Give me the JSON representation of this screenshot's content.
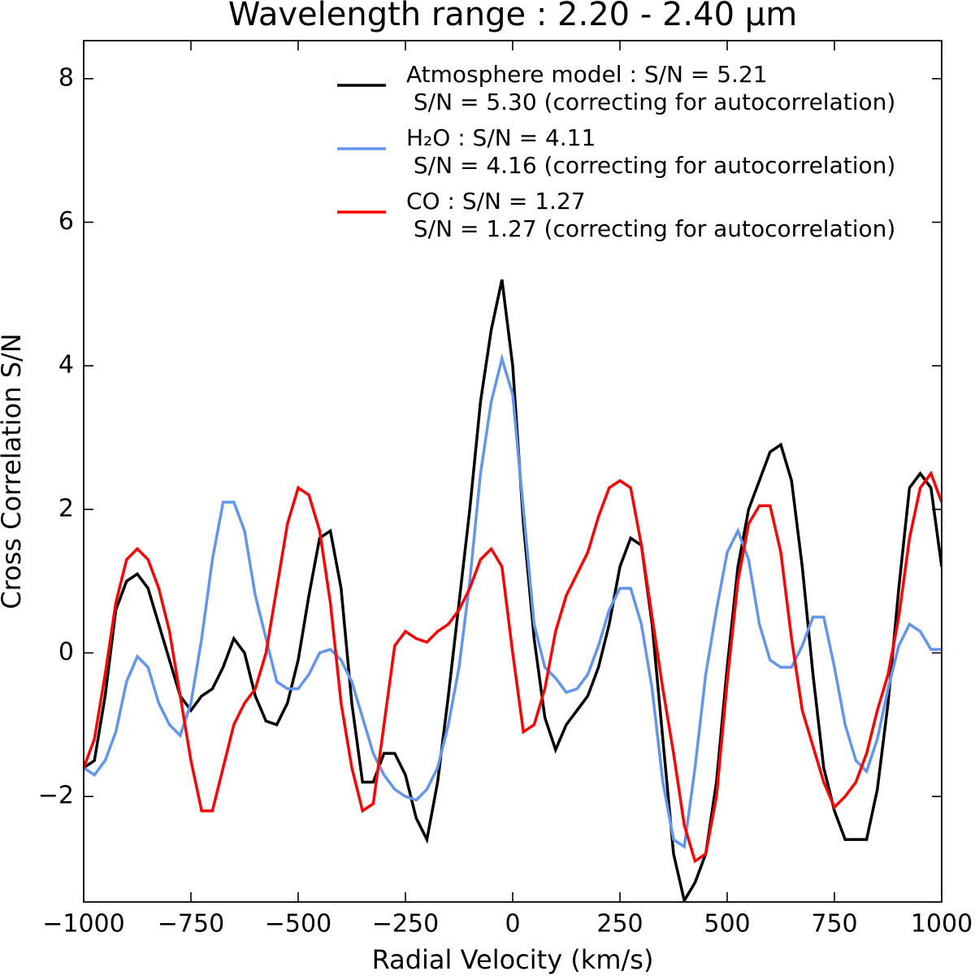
{
  "chart_data": {
    "type": "line",
    "title": "Wavelength range : 2.20 - 2.40 μm",
    "xlabel": "Radial Velocity (km/s)",
    "ylabel": "Cross Correlation S/N",
    "xlim": [
      -1000,
      1000
    ],
    "ylim": [
      -3.47,
      8.53
    ],
    "xticks": [
      {
        "value": -1000,
        "label": "−1000"
      },
      {
        "value": -750,
        "label": "−750"
      },
      {
        "value": -500,
        "label": "−500"
      },
      {
        "value": -250,
        "label": "−250"
      },
      0,
      250,
      500,
      750,
      1000
    ],
    "yticks": [
      {
        "value": -2,
        "label": "−2"
      },
      0,
      2,
      4,
      6,
      8
    ],
    "x": [
      -1000,
      -975,
      -950,
      -925,
      -900,
      -875,
      -850,
      -825,
      -800,
      -775,
      -750,
      -725,
      -700,
      -675,
      -650,
      -625,
      -600,
      -575,
      -550,
      -525,
      -500,
      -475,
      -450,
      -425,
      -400,
      -375,
      -350,
      -325,
      -300,
      -275,
      -250,
      -225,
      -200,
      -175,
      -150,
      -125,
      -100,
      -75,
      -50,
      -25,
      0,
      25,
      50,
      75,
      100,
      125,
      150,
      175,
      200,
      225,
      250,
      275,
      300,
      325,
      350,
      375,
      400,
      425,
      450,
      475,
      500,
      525,
      550,
      575,
      600,
      625,
      650,
      675,
      700,
      725,
      750,
      775,
      800,
      825,
      850,
      875,
      900,
      925,
      950,
      975,
      1000
    ],
    "series": [
      {
        "name": "Atmosphere model : S/N = 5.21",
        "note": " S/N = 5.30 (correcting for autocorrelation)",
        "color": "#000000",
        "values": [
          -1.6,
          -1.5,
          -0.6,
          0.6,
          1.0,
          1.1,
          0.9,
          0.4,
          -0.1,
          -0.6,
          -0.8,
          -0.6,
          -0.5,
          -0.2,
          0.2,
          0.0,
          -0.6,
          -0.95,
          -1.0,
          -0.7,
          -0.1,
          0.8,
          1.6,
          1.7,
          0.9,
          -0.7,
          -1.8,
          -1.8,
          -1.4,
          -1.4,
          -1.7,
          -2.3,
          -2.6,
          -1.8,
          -0.6,
          0.7,
          2.0,
          3.5,
          4.5,
          5.2,
          4.0,
          1.8,
          0.2,
          -0.9,
          -1.35,
          -1.0,
          -0.8,
          -0.6,
          -0.2,
          0.4,
          1.2,
          1.6,
          1.5,
          0.4,
          -1.2,
          -2.8,
          -3.45,
          -3.2,
          -2.8,
          -1.8,
          -0.2,
          1.2,
          2.0,
          2.4,
          2.8,
          2.9,
          2.4,
          1.2,
          -0.3,
          -1.6,
          -2.2,
          -2.6,
          -2.6,
          -2.6,
          -1.9,
          -0.7,
          0.9,
          2.3,
          2.5,
          2.3,
          1.2
        ]
      },
      {
        "name": "H₂O : S/N = 4.11",
        "note": " S/N = 4.16 (correcting for autocorrelation)",
        "color": "#6495ed",
        "values": [
          -1.6,
          -1.7,
          -1.5,
          -1.1,
          -0.4,
          -0.05,
          -0.2,
          -0.7,
          -1.0,
          -1.15,
          -0.7,
          0.2,
          1.3,
          2.1,
          2.1,
          1.7,
          0.8,
          0.2,
          -0.4,
          -0.5,
          -0.5,
          -0.3,
          0.0,
          0.05,
          -0.1,
          -0.4,
          -0.9,
          -1.4,
          -1.7,
          -1.9,
          -2.0,
          -2.05,
          -1.9,
          -1.6,
          -1.0,
          -0.2,
          1.0,
          2.5,
          3.5,
          4.1,
          3.6,
          2.0,
          0.4,
          -0.2,
          -0.35,
          -0.55,
          -0.5,
          -0.3,
          0.1,
          0.6,
          0.9,
          0.9,
          0.4,
          -0.5,
          -1.8,
          -2.6,
          -2.7,
          -1.6,
          -0.3,
          0.6,
          1.4,
          1.7,
          1.3,
          0.4,
          -0.1,
          -0.2,
          -0.2,
          0.1,
          0.5,
          0.5,
          -0.2,
          -1.0,
          -1.5,
          -1.65,
          -1.2,
          -0.5,
          0.1,
          0.4,
          0.3,
          0.05,
          0.05
        ]
      },
      {
        "name": "CO : S/N = 1.27",
        "note": " S/N = 1.27 (correcting for autocorrelation)",
        "color": "#ff0000",
        "values": [
          -1.6,
          -1.2,
          -0.3,
          0.7,
          1.3,
          1.45,
          1.3,
          0.9,
          0.3,
          -0.6,
          -1.5,
          -2.2,
          -2.2,
          -1.6,
          -1.0,
          -0.7,
          -0.5,
          0.0,
          0.9,
          1.8,
          2.3,
          2.2,
          1.7,
          0.7,
          -0.7,
          -1.6,
          -2.2,
          -2.1,
          -1.0,
          0.1,
          0.3,
          0.2,
          0.15,
          0.3,
          0.4,
          0.6,
          0.9,
          1.3,
          1.45,
          1.2,
          0.0,
          -1.1,
          -1.0,
          -0.5,
          0.3,
          0.8,
          1.1,
          1.4,
          1.9,
          2.3,
          2.4,
          2.3,
          1.5,
          0.5,
          -0.5,
          -1.4,
          -2.4,
          -2.9,
          -2.8,
          -2.0,
          -0.4,
          1.0,
          1.8,
          2.05,
          2.05,
          1.4,
          0.2,
          -0.8,
          -1.3,
          -1.8,
          -2.15,
          -2.0,
          -1.8,
          -1.4,
          -0.8,
          -0.3,
          0.5,
          1.6,
          2.3,
          2.5,
          2.1
        ]
      }
    ]
  }
}
